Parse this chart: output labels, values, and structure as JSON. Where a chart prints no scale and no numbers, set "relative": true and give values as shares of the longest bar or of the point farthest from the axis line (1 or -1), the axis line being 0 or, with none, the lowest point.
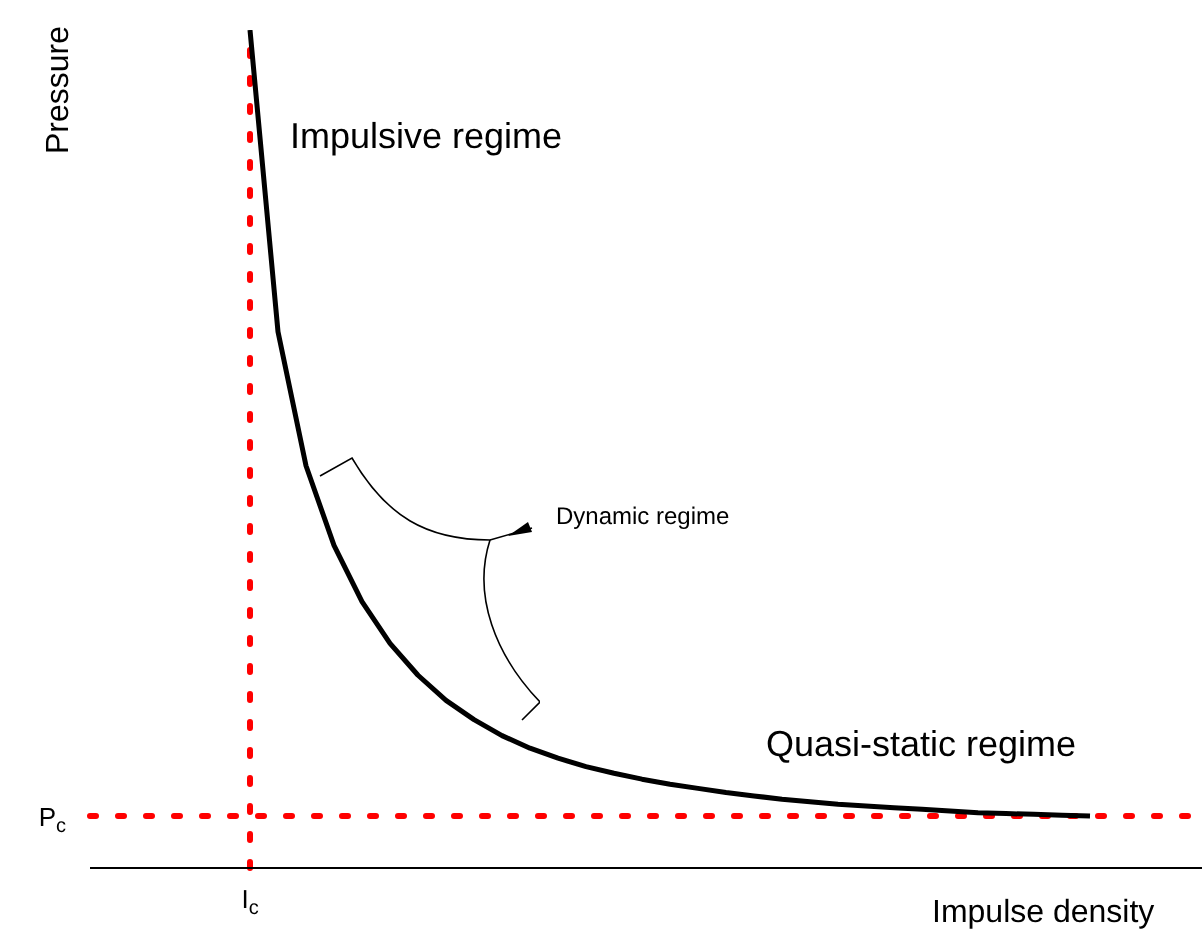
{
  "chart_data": {
    "type": "line",
    "relative": true,
    "xlabel": "Impulse density",
    "ylabel": "Pressure",
    "categories": [
      null,
      null,
      null,
      null,
      null,
      null,
      null,
      null,
      null,
      null,
      null,
      null,
      null,
      null,
      null,
      null,
      null,
      null,
      null,
      null,
      null,
      null,
      null,
      null,
      null,
      null,
      null,
      null,
      null,
      null,
      null
    ],
    "series": [
      {
        "color": "#000000",
        "values": [
          1,
          0.64,
          0.48,
          0.385,
          0.318,
          0.268,
          0.23,
          0.2,
          0.177,
          0.158,
          0.143,
          0.131,
          0.121,
          0.113,
          0.106,
          0.1,
          0.095,
          0.09,
          0.086,
          0.082,
          0.079,
          0.076,
          0.074,
          0.072,
          0.07,
          0.068,
          0.066,
          0.065,
          0.064,
          0.063,
          0.062
        ]
      }
    ],
    "ref_lines": [
      {
        "axis": "x",
        "label": "I$_{c}$",
        "color": "#ff0000",
        "line_style": "dotted"
      },
      {
        "axis": "y",
        "value": 0.062,
        "label": "P$_{c}$",
        "color": "#ff0000",
        "line_style": "dotted"
      }
    ],
    "annotations": [
      "Impulsive regime",
      "Dynamic regime",
      "Quasi-static regime"
    ],
    "grid": false,
    "legend": false,
    "marker": "none",
    "line_style": "solid"
  }
}
